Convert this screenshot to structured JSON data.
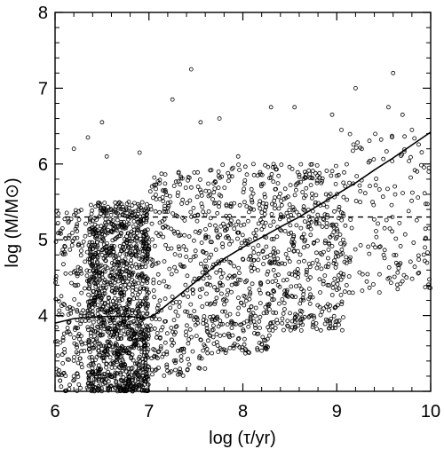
{
  "chart_data": {
    "type": "scatter",
    "title": "",
    "xlabel": "log (τ/yr)",
    "ylabel": "log (M/M⊙)",
    "xlim": [
      6,
      10
    ],
    "ylim": [
      3,
      8
    ],
    "xticks": [
      "6",
      "7",
      "8",
      "9",
      "10"
    ],
    "yticks": [
      "4",
      "5",
      "6",
      "7",
      "8"
    ],
    "grid": false,
    "legend": "none",
    "marker": "open-circle",
    "color": "#000000",
    "reference_line": {
      "y": 5.3,
      "style": "dashed"
    },
    "trend_line": {
      "style": "solid",
      "x": [
        6.0,
        6.2,
        6.4,
        6.6,
        6.8,
        6.95,
        7.05,
        7.2,
        7.4,
        7.6,
        7.8,
        8.0,
        8.2,
        8.4,
        8.6,
        8.8,
        9.0,
        9.2,
        9.4,
        9.6,
        9.8,
        10.0
      ],
      "y": [
        3.9,
        3.96,
        3.98,
        3.99,
        3.99,
        3.96,
        4.0,
        4.15,
        4.35,
        4.55,
        4.75,
        4.9,
        5.03,
        5.17,
        5.3,
        5.45,
        5.6,
        5.75,
        5.92,
        6.08,
        6.25,
        6.42
      ]
    },
    "outliers": {
      "x": [
        7.45,
        9.6,
        6.5,
        7.25,
        9.2,
        9.55,
        8.3,
        8.55,
        8.95,
        9.7,
        7.55,
        7.75,
        6.35,
        6.55,
        9.05,
        9.8,
        6.2,
        6.9,
        7.95
      ],
      "y": [
        7.25,
        7.2,
        6.55,
        6.85,
        7.0,
        6.75,
        6.75,
        6.75,
        6.65,
        6.65,
        6.55,
        6.6,
        6.35,
        6.1,
        6.45,
        6.45,
        6.2,
        6.15,
        6.1
      ]
    },
    "point_density": [
      {
        "x": [
          6.0,
          6.35
        ],
        "y": [
          3.0,
          5.4
        ],
        "n": 180
      },
      {
        "x": [
          6.35,
          7.0
        ],
        "y": [
          3.0,
          5.5
        ],
        "n": 1300
      },
      {
        "x": [
          7.0,
          7.6
        ],
        "y": [
          3.2,
          5.9
        ],
        "n": 300
      },
      {
        "x": [
          7.6,
          8.3
        ],
        "y": [
          3.5,
          6.0
        ],
        "n": 400
      },
      {
        "x": [
          8.3,
          9.1
        ],
        "y": [
          3.8,
          6.0
        ],
        "n": 420
      },
      {
        "x": [
          9.1,
          10.0
        ],
        "y": [
          4.3,
          6.4
        ],
        "n": 150
      }
    ]
  }
}
